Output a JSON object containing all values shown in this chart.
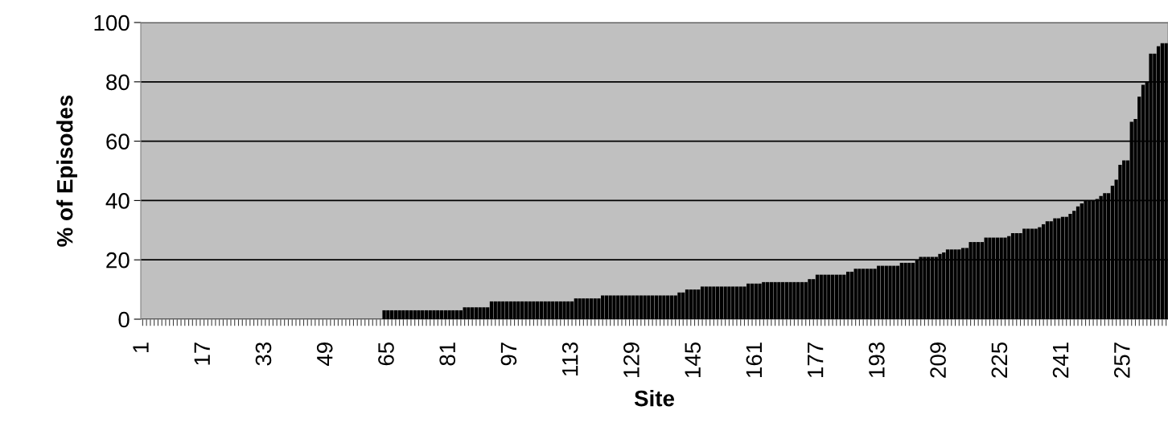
{
  "chart_data": {
    "type": "bar",
    "xlabel": "Site",
    "ylabel": "% of Episodes",
    "categories": [
      "1",
      null,
      null,
      null,
      null,
      null,
      null,
      null,
      null,
      null,
      null,
      null,
      null,
      null,
      null,
      null,
      "17",
      null,
      null,
      null,
      null,
      null,
      null,
      null,
      null,
      null,
      null,
      null,
      null,
      null,
      null,
      null,
      "33",
      null,
      null,
      null,
      null,
      null,
      null,
      null,
      null,
      null,
      null,
      null,
      null,
      null,
      null,
      null,
      "49",
      null,
      null,
      null,
      null,
      null,
      null,
      null,
      null,
      null,
      null,
      null,
      null,
      null,
      null,
      null,
      "65",
      null,
      null,
      null,
      null,
      null,
      null,
      null,
      null,
      null,
      null,
      null,
      null,
      null,
      null,
      null,
      "81",
      null,
      null,
      null,
      null,
      null,
      null,
      null,
      null,
      null,
      null,
      null,
      null,
      null,
      null,
      null,
      "97",
      null,
      null,
      null,
      null,
      null,
      null,
      null,
      null,
      null,
      null,
      null,
      null,
      null,
      null,
      null,
      "113",
      null,
      null,
      null,
      null,
      null,
      null,
      null,
      null,
      null,
      null,
      null,
      null,
      null,
      null,
      null,
      "129",
      null,
      null,
      null,
      null,
      null,
      null,
      null,
      null,
      null,
      null,
      null,
      null,
      null,
      null,
      null,
      "145",
      null,
      null,
      null,
      null,
      null,
      null,
      null,
      null,
      null,
      null,
      null,
      null,
      null,
      null,
      null,
      "161",
      null,
      null,
      null,
      null,
      null,
      null,
      null,
      null,
      null,
      null,
      null,
      null,
      null,
      null,
      null,
      "177",
      null,
      null,
      null,
      null,
      null,
      null,
      null,
      null,
      null,
      null,
      null,
      null,
      null,
      null,
      null,
      "193",
      null,
      null,
      null,
      null,
      null,
      null,
      null,
      null,
      null,
      null,
      null,
      null,
      null,
      null,
      null,
      "209",
      null,
      null,
      null,
      null,
      null,
      null,
      null,
      null,
      null,
      null,
      null,
      null,
      null,
      null,
      null,
      "225",
      null,
      null,
      null,
      null,
      null,
      null,
      null,
      null,
      null,
      null,
      null,
      null,
      null,
      null,
      null,
      "241",
      null,
      null,
      null,
      null,
      null,
      null,
      null,
      null,
      null,
      null,
      null,
      null,
      null,
      null,
      null,
      "257",
      null,
      null,
      null,
      null,
      null,
      null,
      null,
      null,
      null,
      null,
      null
    ],
    "values": [
      0,
      0,
      0,
      0,
      0,
      0,
      0,
      0,
      0,
      0,
      0,
      0,
      0,
      0,
      0,
      0,
      0,
      0,
      0,
      0,
      0,
      0,
      0,
      0,
      0,
      0,
      0,
      0,
      0,
      0,
      0,
      0,
      0,
      0,
      0,
      0,
      0,
      0,
      0,
      0,
      0,
      0,
      0,
      0,
      0,
      0,
      0,
      0,
      0,
      0,
      0,
      0,
      0,
      0,
      0,
      0,
      0,
      0,
      0,
      0,
      0,
      0,
      0,
      3,
      3,
      3,
      3,
      3,
      3,
      3,
      3,
      3,
      3,
      3,
      3,
      3,
      3,
      3,
      3,
      3,
      3,
      3,
      3,
      3,
      4,
      4,
      4,
      4,
      4,
      4,
      4,
      6,
      6,
      6,
      6,
      6,
      6,
      6,
      6,
      6,
      6,
      6,
      6,
      6,
      6,
      6,
      6,
      6,
      6,
      6,
      6,
      6,
      6,
      7,
      7,
      7,
      7,
      7,
      7,
      7,
      8,
      8,
      8,
      8,
      8,
      8,
      8,
      8,
      8,
      8,
      8,
      8,
      8,
      8,
      8,
      8,
      8,
      8,
      8,
      8,
      9,
      9,
      10,
      10,
      10,
      10,
      11,
      11,
      11,
      11,
      11,
      11,
      11,
      11,
      11,
      11,
      11,
      11,
      12,
      12,
      12,
      12,
      12.5,
      12.5,
      12.5,
      12.5,
      12.5,
      12.5,
      12.5,
      12.5,
      12.5,
      12.5,
      12.5,
      12.5,
      13.5,
      13.5,
      15,
      15,
      15,
      15,
      15,
      15,
      15,
      15,
      16,
      16,
      17,
      17,
      17,
      17,
      17,
      17,
      18,
      18,
      18,
      18,
      18,
      18,
      19,
      19,
      19,
      19,
      20,
      21,
      21,
      21,
      21,
      21,
      22,
      22.5,
      23.5,
      23.5,
      23.5,
      23.5,
      24,
      24,
      26,
      26,
      26,
      26,
      27.5,
      27.5,
      27.5,
      27.5,
      27.5,
      27.5,
      28,
      29,
      29,
      29,
      30.5,
      30.5,
      30.5,
      30.5,
      31,
      32,
      33,
      33,
      34,
      34,
      34.5,
      34.5,
      35.5,
      36.5,
      38,
      39,
      40,
      40,
      40,
      40.5,
      41.5,
      42.5,
      42.5,
      45,
      47,
      52,
      53.5,
      53.5,
      66.5,
      67.5,
      75,
      79,
      80,
      89.5,
      89.5,
      92,
      93,
      93
    ],
    "color": "#000000",
    "ylim": [
      0,
      100
    ],
    "yticks": [
      0,
      20,
      40,
      60,
      80,
      100
    ],
    "grid": "y"
  }
}
